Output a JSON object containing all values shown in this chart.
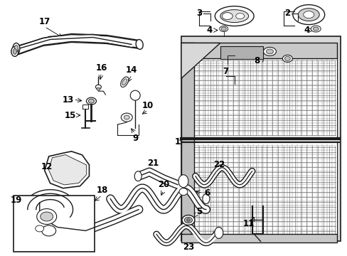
{
  "bg_color": "#ffffff",
  "line_color": "#1a1a1a",
  "gray_fill": "#d0d0d0",
  "fig_width": 4.89,
  "fig_height": 3.6,
  "dpi": 100
}
